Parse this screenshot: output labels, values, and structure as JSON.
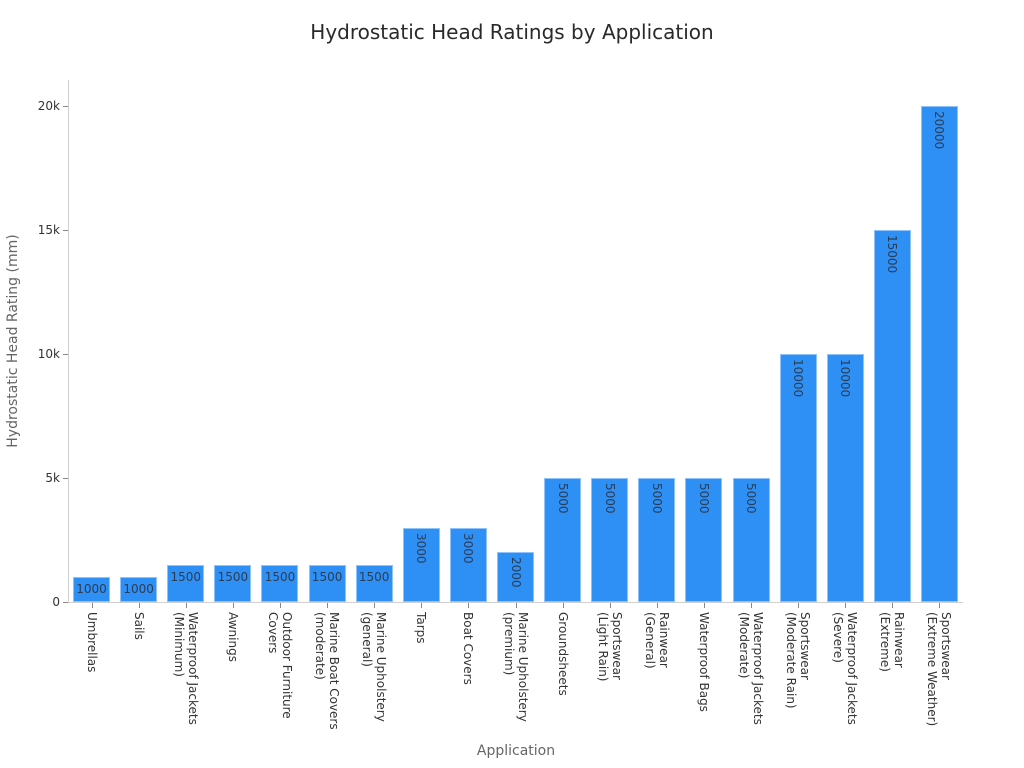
{
  "chart": {
    "title": "Hydrostatic Head Ratings by Application",
    "xlabel": "Application",
    "ylabel": "Hydrostatic Head Rating (mm)",
    "bar_color": "#2e8ff5",
    "yticks": [
      {
        "value": 0,
        "label": "0"
      },
      {
        "value": 5000,
        "label": "5k"
      },
      {
        "value": 10000,
        "label": "10k"
      },
      {
        "value": 15000,
        "label": "15k"
      },
      {
        "value": 20000,
        "label": "20k"
      }
    ]
  },
  "chart_data": {
    "type": "bar",
    "title": "Hydrostatic Head Ratings by Application",
    "xlabel": "Application",
    "ylabel": "Hydrostatic Head Rating (mm)",
    "ylim": [
      0,
      21000
    ],
    "grid": false,
    "legend": null,
    "categories": [
      "Umbrellas",
      "Sails",
      "Waterproof Jackets (Minimum)",
      "Awnings",
      "Outdoor Furniture Covers",
      "Marine Boat Covers (moderate)",
      "Marine Upholstery (general)",
      "Tarps",
      "Boat Covers",
      "Marine Upholstery (premium)",
      "Groundsheets",
      "Sportswear (Light Rain)",
      "Rainwear (General)",
      "Waterproof Bags",
      "Waterproof Jackets (Moderate)",
      "Sportswear (Moderate Rain)",
      "Waterproof Jackets (Severe)",
      "Rainwear (Extreme)",
      "Sportswear (Extreme Weather)"
    ],
    "values": [
      1000,
      1000,
      1500,
      1500,
      1500,
      1500,
      1500,
      3000,
      3000,
      2000,
      5000,
      5000,
      5000,
      5000,
      5000,
      10000,
      10000,
      15000,
      20000
    ],
    "tick_label_lines": [
      [
        "Umbrellas"
      ],
      [
        "Sails"
      ],
      [
        "Waterproof Jackets",
        "(Minimum)"
      ],
      [
        "Awnings"
      ],
      [
        "Outdoor Furniture",
        "Covers"
      ],
      [
        "Marine Boat Covers",
        "(moderate)"
      ],
      [
        "Marine Upholstery",
        "(general)"
      ],
      [
        "Tarps"
      ],
      [
        "Boat Covers"
      ],
      [
        "Marine Upholstery",
        "(premium)"
      ],
      [
        "Groundsheets"
      ],
      [
        "Sportswear",
        "(Light Rain)"
      ],
      [
        "Rainwear",
        "(General)"
      ],
      [
        "Waterproof Bags"
      ],
      [
        "Waterproof Jackets",
        "(Moderate)"
      ],
      [
        "Sportswear",
        "(Moderate Rain)"
      ],
      [
        "Waterproof Jackets",
        "(Severe)"
      ],
      [
        "Rainwear",
        "(Extreme)"
      ],
      [
        "Sportswear",
        "(Extreme Weather)"
      ]
    ]
  }
}
